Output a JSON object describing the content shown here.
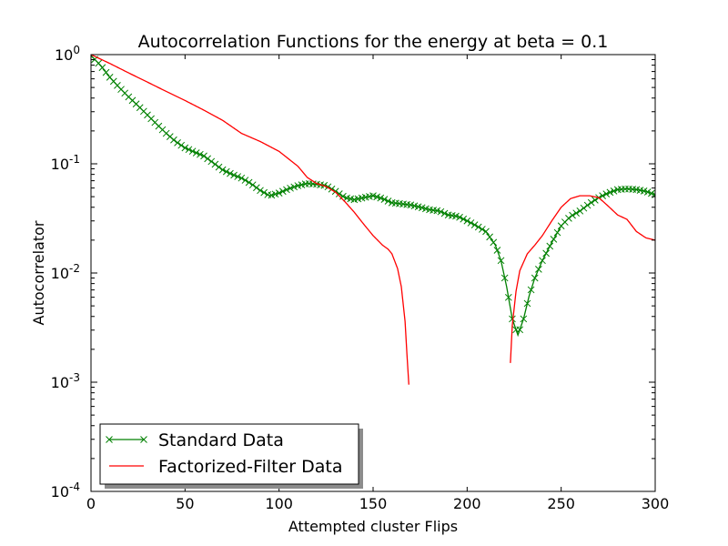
{
  "chart_data": {
    "type": "line",
    "title": "Autocorrelation Functions for the energy at beta = 0.1",
    "xlabel": "Attempted cluster Flips",
    "ylabel": "Autocorrelator",
    "xlim": [
      0,
      300
    ],
    "ylim": [
      0.0001,
      1
    ],
    "yscale": "log",
    "x_ticks": [
      0,
      50,
      100,
      150,
      200,
      250,
      300
    ],
    "y_ticks": [
      {
        "value": 1,
        "base": "10",
        "exp": "0"
      },
      {
        "value": 0.1,
        "base": "10",
        "exp": "-1"
      },
      {
        "value": 0.01,
        "base": "10",
        "exp": "-2"
      },
      {
        "value": 0.001,
        "base": "10",
        "exp": "-3"
      },
      {
        "value": 0.0001,
        "base": "10",
        "exp": "-4"
      }
    ],
    "grid": false,
    "legend_position": "lower-left",
    "series": [
      {
        "name": "Standard Data",
        "color": "#008000",
        "marker": "x",
        "step": 2,
        "points": [
          [
            0,
            0.98
          ],
          [
            5,
            0.8
          ],
          [
            10,
            0.62
          ],
          [
            15,
            0.5
          ],
          [
            20,
            0.41
          ],
          [
            25,
            0.34
          ],
          [
            30,
            0.28
          ],
          [
            35,
            0.23
          ],
          [
            40,
            0.19
          ],
          [
            45,
            0.16
          ],
          [
            50,
            0.14
          ],
          [
            55,
            0.128
          ],
          [
            60,
            0.118
          ],
          [
            65,
            0.102
          ],
          [
            70,
            0.088
          ],
          [
            75,
            0.08
          ],
          [
            80,
            0.074
          ],
          [
            85,
            0.066
          ],
          [
            90,
            0.057
          ],
          [
            95,
            0.051
          ],
          [
            100,
            0.054
          ],
          [
            105,
            0.059
          ],
          [
            110,
            0.063
          ],
          [
            115,
            0.066
          ],
          [
            120,
            0.065
          ],
          [
            125,
            0.063
          ],
          [
            130,
            0.056
          ],
          [
            135,
            0.049
          ],
          [
            140,
            0.047
          ],
          [
            145,
            0.049
          ],
          [
            150,
            0.051
          ],
          [
            155,
            0.048
          ],
          [
            160,
            0.044
          ],
          [
            165,
            0.043
          ],
          [
            170,
            0.042
          ],
          [
            175,
            0.04
          ],
          [
            180,
            0.038
          ],
          [
            185,
            0.037
          ],
          [
            190,
            0.034
          ],
          [
            195,
            0.033
          ],
          [
            200,
            0.03
          ],
          [
            205,
            0.027
          ],
          [
            210,
            0.024
          ],
          [
            215,
            0.018
          ],
          [
            218,
            0.013
          ],
          [
            221,
            0.0075
          ],
          [
            224,
            0.0038
          ],
          [
            227,
            0.0027
          ],
          [
            230,
            0.0038
          ],
          [
            233,
            0.0062
          ],
          [
            236,
            0.009
          ],
          [
            240,
            0.013
          ],
          [
            245,
            0.019
          ],
          [
            250,
            0.027
          ],
          [
            255,
            0.033
          ],
          [
            260,
            0.037
          ],
          [
            265,
            0.043
          ],
          [
            270,
            0.049
          ],
          [
            275,
            0.054
          ],
          [
            280,
            0.058
          ],
          [
            285,
            0.059
          ],
          [
            290,
            0.058
          ],
          [
            295,
            0.056
          ],
          [
            300,
            0.052
          ]
        ]
      },
      {
        "name": "Factorized-Filter Data",
        "color": "#ff0000",
        "marker": "none",
        "segments": [
          [
            [
              0,
              1.0
            ],
            [
              10,
              0.83
            ],
            [
              20,
              0.68
            ],
            [
              30,
              0.56
            ],
            [
              40,
              0.46
            ],
            [
              50,
              0.38
            ],
            [
              60,
              0.31
            ],
            [
              70,
              0.25
            ],
            [
              80,
              0.19
            ],
            [
              90,
              0.16
            ],
            [
              100,
              0.13
            ],
            [
              110,
              0.095
            ],
            [
              115,
              0.075
            ],
            [
              120,
              0.066
            ],
            [
              125,
              0.062
            ],
            [
              130,
              0.055
            ],
            [
              135,
              0.045
            ],
            [
              140,
              0.036
            ],
            [
              145,
              0.028
            ],
            [
              150,
              0.022
            ],
            [
              155,
              0.018
            ],
            [
              158,
              0.0165
            ],
            [
              160,
              0.015
            ],
            [
              163,
              0.011
            ],
            [
              165,
              0.0075
            ],
            [
              167,
              0.0036
            ],
            [
              168,
              0.0018
            ],
            [
              169,
              0.00095
            ]
          ],
          [
            [
              223,
              0.0015
            ],
            [
              224,
              0.0033
            ],
            [
              226,
              0.0068
            ],
            [
              228,
              0.0105
            ],
            [
              232,
              0.015
            ],
            [
              236,
              0.018
            ],
            [
              240,
              0.022
            ],
            [
              245,
              0.03
            ],
            [
              250,
              0.04
            ],
            [
              255,
              0.048
            ],
            [
              260,
              0.051
            ],
            [
              265,
              0.051
            ],
            [
              270,
              0.049
            ],
            [
              275,
              0.041
            ],
            [
              280,
              0.034
            ],
            [
              285,
              0.031
            ],
            [
              290,
              0.024
            ],
            [
              295,
              0.021
            ],
            [
              300,
              0.02
            ]
          ]
        ]
      }
    ]
  }
}
